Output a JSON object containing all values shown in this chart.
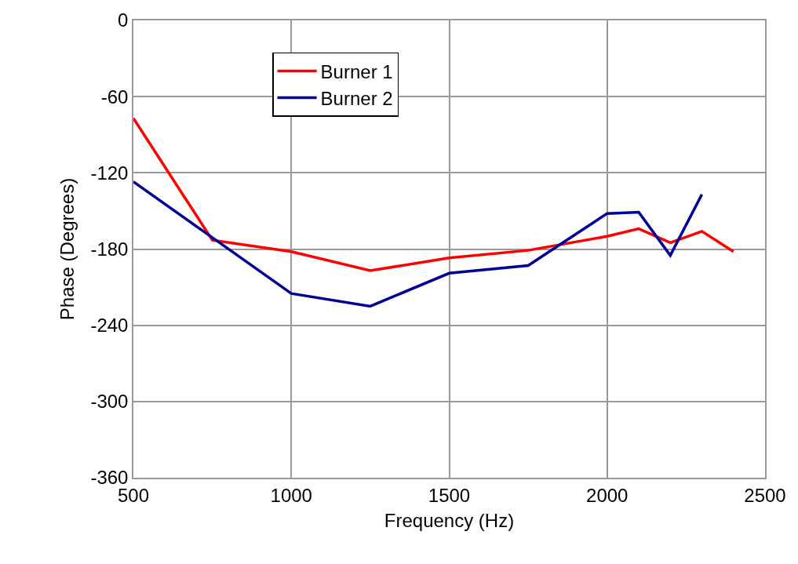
{
  "chart_data": {
    "type": "line",
    "xlabel": "Frequency (Hz)",
    "ylabel": "Phase (Degrees)",
    "x": [
      500,
      750,
      1000,
      1250,
      1500,
      1750,
      2000,
      2100,
      2200,
      2300,
      2400
    ],
    "series": [
      {
        "name": "Burner 1",
        "color": "#ff0000",
        "values": [
          -77,
          -173,
          -182,
          -197,
          -187,
          -181,
          -170,
          -164,
          -175,
          -166,
          -182
        ]
      },
      {
        "name": "Burner 2",
        "color": "#000099",
        "values": [
          -127,
          -171,
          -215,
          -225,
          -199,
          -193,
          -152,
          -151,
          -185,
          -137,
          null
        ]
      }
    ],
    "xlim": [
      500,
      2500
    ],
    "xticks": [
      500,
      1000,
      1500,
      2000,
      2500
    ],
    "ylim": [
      -360,
      0
    ],
    "yticks": [
      -360,
      -300,
      -240,
      -180,
      -120,
      -60,
      0
    ],
    "grid": true,
    "legend": "top left",
    "marker": "none",
    "line_style": "solid"
  }
}
